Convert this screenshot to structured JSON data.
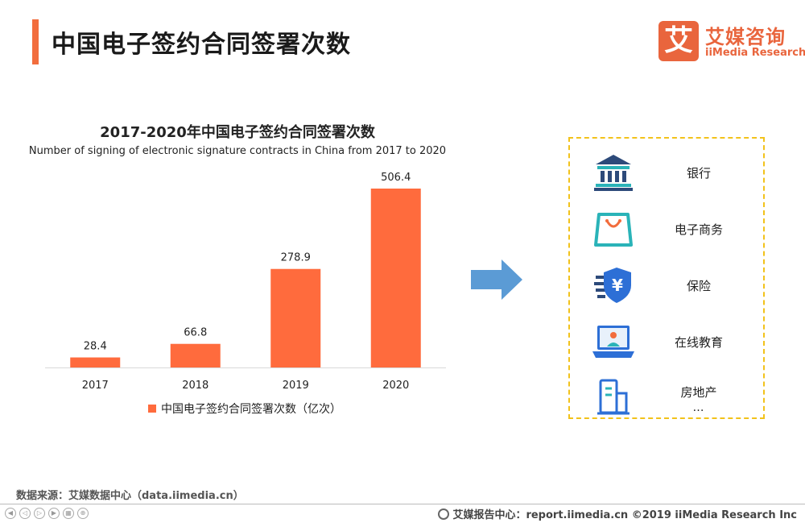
{
  "header": {
    "title": "中国电子签约合同签署次数"
  },
  "logo": {
    "mark": "艾",
    "cn": "艾媒咨询",
    "en": "iiMedia Research"
  },
  "chart_data": {
    "type": "bar",
    "title": "2017-2020年中国电子签约合同签署次数",
    "subtitle": "Number of signing of electronic signature contracts in China from 2017 to 2020",
    "categories": [
      "2017",
      "2018",
      "2019",
      "2020"
    ],
    "series": [
      {
        "name": "中国电子签约合同签署次数（亿次）",
        "values": [
          28.4,
          66.8,
          278.9,
          506.4
        ]
      }
    ],
    "value_labels": [
      "28.4",
      "66.8",
      "278.9",
      "506.4"
    ],
    "ylim": [
      0,
      506.4
    ],
    "legend_position": "bottom",
    "grid": false,
    "color": "#ff6b3d"
  },
  "panel": {
    "items": [
      {
        "label": "银行",
        "icon": "bank-icon"
      },
      {
        "label": "电子商务",
        "icon": "shopping-bag-icon"
      },
      {
        "label": "保险",
        "icon": "insurance-shield-icon"
      },
      {
        "label": "在线教育",
        "icon": "laptop-teacher-icon"
      },
      {
        "label": "房地产",
        "icon": "building-icon"
      }
    ],
    "more": "…"
  },
  "source": "数据来源：艾媒数据中心（data.iimedia.cn）",
  "footer": {
    "text": "艾媒报告中心：report.iimedia.cn  ©2019  iiMedia Research  Inc"
  },
  "colors": {
    "accent": "#f26d3d",
    "bar": "#ff6b3d",
    "arrow": "#5b9bd5",
    "panel_border": "#f2c21b",
    "icon_dark": "#2d4a7a",
    "icon_teal": "#2ab3b8",
    "icon_blue": "#2d6fd6"
  }
}
